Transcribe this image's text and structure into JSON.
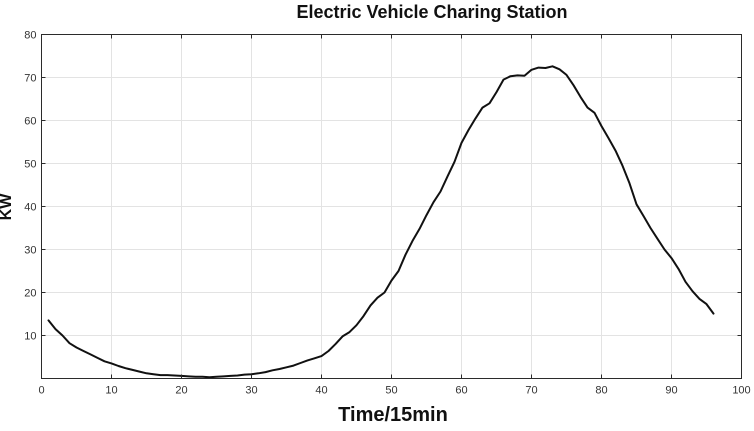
{
  "chart_data": {
    "type": "line",
    "title": "Electric Vehicle Charing Station",
    "xlabel": "Time/15min",
    "ylabel": "KW",
    "xlim": [
      0,
      100
    ],
    "ylim": [
      0,
      80
    ],
    "x_ticks": [
      0,
      10,
      20,
      30,
      40,
      50,
      60,
      70,
      80,
      90,
      100
    ],
    "y_ticks": [
      10,
      20,
      30,
      40,
      50,
      60,
      70,
      80
    ],
    "x_tick_labels": [
      "0",
      "10",
      "20",
      "30",
      "40",
      "50",
      "60",
      "70",
      "80",
      "90",
      "100"
    ],
    "y_tick_labels": [
      "10",
      "20",
      "30",
      "40",
      "50",
      "60",
      "70",
      "80"
    ],
    "grid": true,
    "line_color": "#111111",
    "series": [
      {
        "x": [
          1,
          2,
          3,
          4,
          5,
          6,
          7,
          8,
          9,
          10,
          11,
          12,
          13,
          14,
          15,
          16,
          17,
          18,
          19,
          20,
          21,
          22,
          23,
          24,
          25,
          26,
          27,
          28,
          29,
          30,
          31,
          32,
          33,
          34,
          35,
          36,
          37,
          38,
          39,
          40,
          41,
          42,
          43,
          44,
          45,
          46,
          47,
          48,
          49,
          50,
          51,
          52,
          53,
          54,
          55,
          56,
          57,
          58,
          59,
          60,
          61,
          62,
          63,
          64,
          65,
          66,
          67,
          68,
          69,
          70,
          71,
          72,
          73,
          74,
          75,
          76,
          77,
          78,
          79,
          80,
          81,
          82,
          83,
          84,
          85,
          86,
          87,
          88,
          89,
          90,
          91,
          92,
          93,
          94,
          95,
          96
        ],
        "values": [
          13.5,
          11.5,
          10.0,
          8.2,
          7.2,
          6.4,
          5.6,
          4.8,
          4.0,
          3.5,
          2.9,
          2.4,
          2.0,
          1.6,
          1.2,
          1.0,
          0.8,
          0.8,
          0.7,
          0.6,
          0.5,
          0.4,
          0.4,
          0.3,
          0.4,
          0.5,
          0.6,
          0.7,
          0.9,
          1.0,
          1.2,
          1.5,
          1.9,
          2.2,
          2.6,
          3.0,
          3.6,
          4.2,
          4.7,
          5.2,
          6.4,
          8.0,
          9.8,
          10.8,
          12.4,
          14.5,
          17.0,
          18.8,
          20.0,
          22.8,
          25.0,
          28.8,
          32.0,
          34.8,
          38.0,
          41.0,
          43.5,
          47.0,
          50.4,
          54.8,
          57.8,
          60.5,
          63.0,
          64.0,
          66.6,
          69.5,
          70.3,
          70.5,
          70.4,
          71.8,
          72.3,
          72.2,
          72.6,
          71.9,
          70.6,
          68.2,
          65.5,
          63.0,
          61.8,
          58.7,
          55.9,
          53.0,
          49.5,
          45.4,
          40.5,
          37.8,
          35.0,
          32.5,
          30.0,
          28.0,
          25.5,
          22.5,
          20.3,
          18.5,
          17.3,
          15.1
        ]
      }
    ]
  }
}
